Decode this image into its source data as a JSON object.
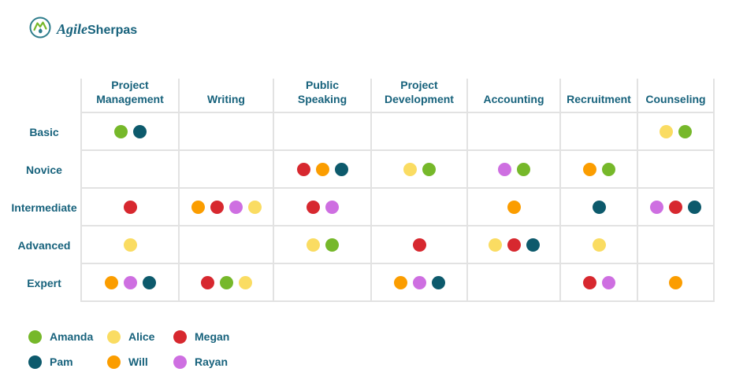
{
  "brand": {
    "name_italic": "Agile",
    "name_bold": "Sherpas"
  },
  "colors": {
    "text_teal": "#17627C",
    "grid_border": "#E2E2E2",
    "logo_green": "#76B82A",
    "logo_teal": "#2E7D8C"
  },
  "people": {
    "Amanda": "#76B82A",
    "Alice": "#FADC62",
    "Megan": "#D7282F",
    "Pam": "#0D5A6C",
    "Will": "#FB9D00",
    "Rayan": "#CE6FE1"
  },
  "legend": {
    "rows": [
      [
        "Amanda",
        "Alice",
        "Megan"
      ],
      [
        "Pam",
        "Will",
        "Rayan"
      ]
    ]
  },
  "chart_data": {
    "type": "table",
    "columns": [
      [
        "Project",
        "Management"
      ],
      [
        "Writing"
      ],
      [
        "Public",
        "Speaking"
      ],
      [
        "Project",
        "Development"
      ],
      [
        "Accounting"
      ],
      [
        "Recruitment"
      ],
      [
        "Counseling"
      ]
    ],
    "rows": [
      "Basic",
      "Novice",
      "Intermediate",
      "Advanced",
      "Expert"
    ],
    "cells": [
      [
        [
          "Amanda",
          "Pam"
        ],
        [],
        [],
        [],
        [],
        [],
        [
          "Alice",
          "Amanda"
        ]
      ],
      [
        [],
        [],
        [
          "Megan",
          "Will",
          "Pam"
        ],
        [
          "Alice",
          "Amanda"
        ],
        [
          "Rayan",
          "Amanda"
        ],
        [
          "Will",
          "Amanda"
        ],
        []
      ],
      [
        [
          "Megan"
        ],
        [
          "Will",
          "Megan",
          "Rayan",
          "Alice"
        ],
        [
          "Megan",
          "Rayan"
        ],
        [],
        [
          "Will"
        ],
        [
          "Pam"
        ],
        [
          "Rayan",
          "Megan",
          "Pam"
        ]
      ],
      [
        [
          "Alice"
        ],
        [],
        [
          "Alice",
          "Amanda"
        ],
        [
          "Megan"
        ],
        [
          "Alice",
          "Megan",
          "Pam"
        ],
        [
          "Alice"
        ],
        []
      ],
      [
        [
          "Will",
          "Rayan",
          "Pam"
        ],
        [
          "Megan",
          "Amanda",
          "Alice"
        ],
        [],
        [
          "Will",
          "Rayan",
          "Pam"
        ],
        [],
        [
          "Megan",
          "Rayan"
        ],
        [
          "Will"
        ]
      ]
    ]
  }
}
